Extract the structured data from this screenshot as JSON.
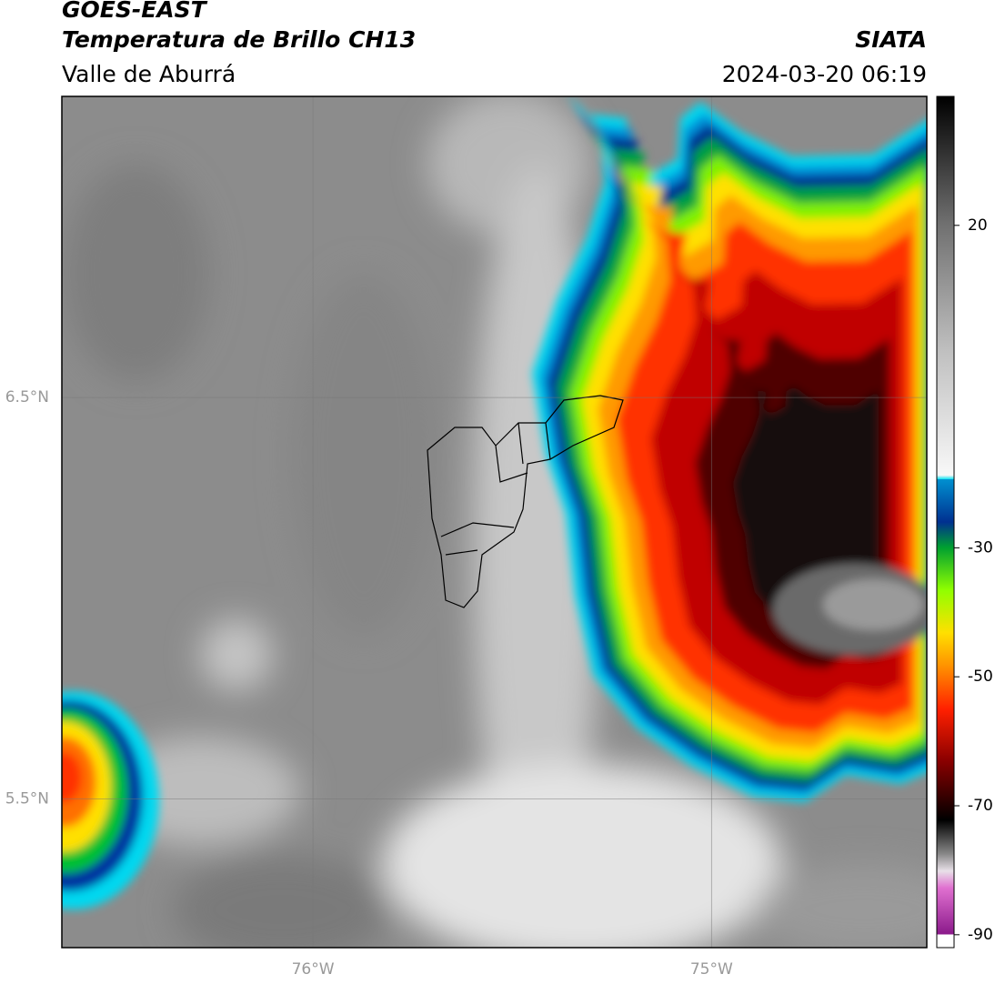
{
  "header": {
    "satellite": "GOES-EAST",
    "product": "Temperatura de Brillo CH13",
    "institution": "SIATA",
    "region": "Valle de Aburrá",
    "datetime": "2024-03-20 06:19"
  },
  "map": {
    "xlim": [
      -76.63,
      -74.46
    ],
    "ylim": [
      5.13,
      7.25
    ],
    "xticks": [
      {
        "value": -76,
        "label": "76°W"
      },
      {
        "value": -75,
        "label": "75°W"
      }
    ],
    "yticks": [
      {
        "value": 6.5,
        "label": "6.5°N"
      },
      {
        "value": 5.5,
        "label": "5.5°N"
      }
    ],
    "grid": true
  },
  "colorbar": {
    "clim": [
      -92,
      40
    ],
    "ticks": [
      20,
      -30,
      -50,
      -70,
      -90
    ]
  }
}
